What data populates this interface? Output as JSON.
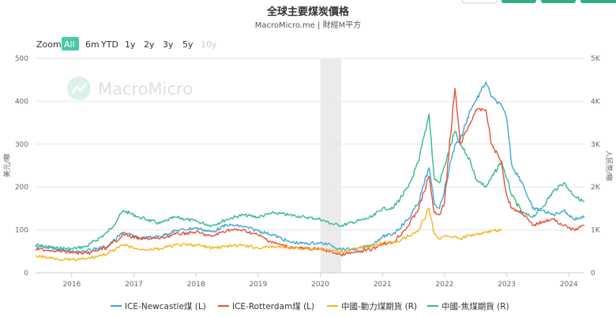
{
  "title": "全球主要煤炭價格",
  "subtitle": "MacroMicro.me | 財經M平方",
  "watermark": "MacroMicro",
  "zoom": {
    "label": "Zoom",
    "buttons": [
      "All",
      "6m",
      "YTD",
      "1y",
      "2y",
      "3y",
      "5y",
      "10y"
    ],
    "active": "All",
    "disabled": [
      "10y"
    ]
  },
  "colors": {
    "newcastle": "#3ea8d6",
    "rotterdam": "#e4513a",
    "thermal": "#f5b51b",
    "coking": "#35b989",
    "active_button": "#48c9a9",
    "top_buttons": "#33b07f"
  },
  "chart_data": {
    "type": "line",
    "title": "全球主要煤炭價格",
    "subtitle": "MacroMicro.me | 財經M平方",
    "x_ticks": [
      "2016",
      "2017",
      "2018",
      "2019",
      "2020",
      "2021",
      "2022",
      "2023",
      "2024"
    ],
    "x_range": [
      "2015-06",
      "2024-04"
    ],
    "left_axis": {
      "label": "美元/噸",
      "ticks": [
        0,
        100,
        200,
        300,
        400,
        500
      ],
      "range": [
        0,
        500
      ]
    },
    "right_axis": {
      "label": "人民幣/噸",
      "ticks": [
        "0",
        "1K",
        "2K",
        "3K",
        "4K",
        "5K"
      ],
      "range": [
        0,
        5000
      ]
    },
    "shaded_band": {
      "from": "2020-01",
      "to": "2020-05"
    },
    "grid": true,
    "legend_position": "bottom",
    "series": [
      {
        "name": "ICE-Newcastle煤 (L)",
        "axis": "left",
        "color": "#3ea8d6",
        "points": [
          [
            "2015-06",
            60
          ],
          [
            "2015-10",
            55
          ],
          [
            "2016-01",
            50
          ],
          [
            "2016-04",
            52
          ],
          [
            "2016-08",
            62
          ],
          [
            "2016-11",
            95
          ],
          [
            "2017-02",
            80
          ],
          [
            "2017-06",
            85
          ],
          [
            "2017-09",
            98
          ],
          [
            "2018-01",
            105
          ],
          [
            "2018-04",
            95
          ],
          [
            "2018-07",
            112
          ],
          [
            "2018-10",
            108
          ],
          [
            "2019-01",
            98
          ],
          [
            "2019-04",
            88
          ],
          [
            "2019-07",
            72
          ],
          [
            "2019-10",
            68
          ],
          [
            "2020-01",
            70
          ],
          [
            "2020-03",
            65
          ],
          [
            "2020-05",
            55
          ],
          [
            "2020-08",
            55
          ],
          [
            "2020-11",
            65
          ],
          [
            "2021-01",
            85
          ],
          [
            "2021-03",
            90
          ],
          [
            "2021-06",
            125
          ],
          [
            "2021-08",
            165
          ],
          [
            "2021-10",
            245
          ],
          [
            "2021-11",
            160
          ],
          [
            "2021-12",
            150
          ],
          [
            "2022-01",
            195
          ],
          [
            "2022-03",
            300
          ],
          [
            "2022-04",
            310
          ],
          [
            "2022-06",
            380
          ],
          [
            "2022-07",
            400
          ],
          [
            "2022-09",
            445
          ],
          [
            "2022-10",
            410
          ],
          [
            "2022-12",
            390
          ],
          [
            "2023-01",
            360
          ],
          [
            "2023-02",
            250
          ],
          [
            "2023-04",
            210
          ],
          [
            "2023-06",
            150
          ],
          [
            "2023-08",
            145
          ],
          [
            "2023-10",
            135
          ],
          [
            "2023-12",
            145
          ],
          [
            "2024-02",
            125
          ],
          [
            "2024-04",
            130
          ]
        ]
      },
      {
        "name": "ICE-Rotterdam煤 (L)",
        "axis": "left",
        "color": "#e4513a",
        "points": [
          [
            "2015-06",
            55
          ],
          [
            "2015-10",
            52
          ],
          [
            "2016-01",
            47
          ],
          [
            "2016-04",
            45
          ],
          [
            "2016-08",
            60
          ],
          [
            "2016-11",
            90
          ],
          [
            "2017-02",
            80
          ],
          [
            "2017-06",
            80
          ],
          [
            "2017-09",
            90
          ],
          [
            "2018-01",
            95
          ],
          [
            "2018-04",
            85
          ],
          [
            "2018-07",
            100
          ],
          [
            "2018-10",
            100
          ],
          [
            "2019-01",
            88
          ],
          [
            "2019-04",
            70
          ],
          [
            "2019-07",
            60
          ],
          [
            "2019-10",
            57
          ],
          [
            "2020-01",
            55
          ],
          [
            "2020-03",
            50
          ],
          [
            "2020-05",
            42
          ],
          [
            "2020-08",
            48
          ],
          [
            "2020-11",
            55
          ],
          [
            "2021-01",
            68
          ],
          [
            "2021-03",
            70
          ],
          [
            "2021-06",
            110
          ],
          [
            "2021-08",
            150
          ],
          [
            "2021-10",
            225
          ],
          [
            "2021-11",
            140
          ],
          [
            "2021-12",
            135
          ],
          [
            "2022-01",
            165
          ],
          [
            "2022-03",
            430
          ],
          [
            "2022-04",
            300
          ],
          [
            "2022-06",
            350
          ],
          [
            "2022-07",
            380
          ],
          [
            "2022-09",
            380
          ],
          [
            "2022-10",
            300
          ],
          [
            "2022-12",
            260
          ],
          [
            "2023-01",
            180
          ],
          [
            "2023-02",
            150
          ],
          [
            "2023-04",
            140
          ],
          [
            "2023-06",
            110
          ],
          [
            "2023-08",
            120
          ],
          [
            "2023-10",
            125
          ],
          [
            "2023-12",
            110
          ],
          [
            "2024-02",
            100
          ],
          [
            "2024-04",
            110
          ]
        ]
      },
      {
        "name": "中國-動力煤期貨 (R)",
        "axis": "right",
        "color": "#f5b51b",
        "points": [
          [
            "2015-06",
            400
          ],
          [
            "2015-10",
            330
          ],
          [
            "2016-01",
            300
          ],
          [
            "2016-04",
            330
          ],
          [
            "2016-08",
            450
          ],
          [
            "2016-11",
            650
          ],
          [
            "2017-02",
            550
          ],
          [
            "2017-06",
            560
          ],
          [
            "2017-09",
            650
          ],
          [
            "2018-01",
            650
          ],
          [
            "2018-04",
            580
          ],
          [
            "2018-07",
            620
          ],
          [
            "2018-10",
            640
          ],
          [
            "2019-01",
            580
          ],
          [
            "2019-04",
            610
          ],
          [
            "2019-07",
            590
          ],
          [
            "2019-10",
            560
          ],
          [
            "2020-01",
            550
          ],
          [
            "2020-03",
            520
          ],
          [
            "2020-05",
            490
          ],
          [
            "2020-08",
            560
          ],
          [
            "2020-11",
            640
          ],
          [
            "2021-01",
            700
          ],
          [
            "2021-03",
            690
          ],
          [
            "2021-06",
            850
          ],
          [
            "2021-08",
            1000
          ],
          [
            "2021-10",
            1500
          ],
          [
            "2021-11",
            900
          ],
          [
            "2021-12",
            800
          ],
          [
            "2022-01",
            850
          ],
          [
            "2022-03",
            850
          ],
          [
            "2022-04",
            800
          ],
          [
            "2022-06",
            880
          ],
          [
            "2022-07",
            900
          ],
          [
            "2022-09",
            950
          ],
          [
            "2022-10",
            980
          ],
          [
            "2022-12",
            1000
          ]
        ]
      },
      {
        "name": "中國-焦煤期貨 (R)",
        "axis": "right",
        "color": "#35b989",
        "points": [
          [
            "2015-06",
            650
          ],
          [
            "2015-10",
            580
          ],
          [
            "2016-01",
            560
          ],
          [
            "2016-04",
            620
          ],
          [
            "2016-08",
            950
          ],
          [
            "2016-11",
            1450
          ],
          [
            "2017-02",
            1300
          ],
          [
            "2017-06",
            1150
          ],
          [
            "2017-09",
            1300
          ],
          [
            "2018-01",
            1200
          ],
          [
            "2018-04",
            1100
          ],
          [
            "2018-07",
            1250
          ],
          [
            "2018-10",
            1350
          ],
          [
            "2019-01",
            1300
          ],
          [
            "2019-04",
            1400
          ],
          [
            "2019-07",
            1350
          ],
          [
            "2019-10",
            1300
          ],
          [
            "2020-01",
            1250
          ],
          [
            "2020-03",
            1150
          ],
          [
            "2020-05",
            1100
          ],
          [
            "2020-08",
            1200
          ],
          [
            "2020-11",
            1300
          ],
          [
            "2021-01",
            1500
          ],
          [
            "2021-03",
            1500
          ],
          [
            "2021-06",
            2000
          ],
          [
            "2021-08",
            2600
          ],
          [
            "2021-10",
            3700
          ],
          [
            "2021-11",
            2200
          ],
          [
            "2021-12",
            2100
          ],
          [
            "2022-01",
            2500
          ],
          [
            "2022-03",
            3300
          ],
          [
            "2022-04",
            3000
          ],
          [
            "2022-06",
            2600
          ],
          [
            "2022-07",
            2200
          ],
          [
            "2022-09",
            2000
          ],
          [
            "2022-10",
            2200
          ],
          [
            "2022-12",
            2600
          ],
          [
            "2023-01",
            2200
          ],
          [
            "2023-02",
            1800
          ],
          [
            "2023-04",
            1400
          ],
          [
            "2023-06",
            1300
          ],
          [
            "2023-08",
            1550
          ],
          [
            "2023-10",
            1900
          ],
          [
            "2023-12",
            2100
          ],
          [
            "2024-02",
            1800
          ],
          [
            "2024-04",
            1650
          ]
        ]
      }
    ]
  }
}
